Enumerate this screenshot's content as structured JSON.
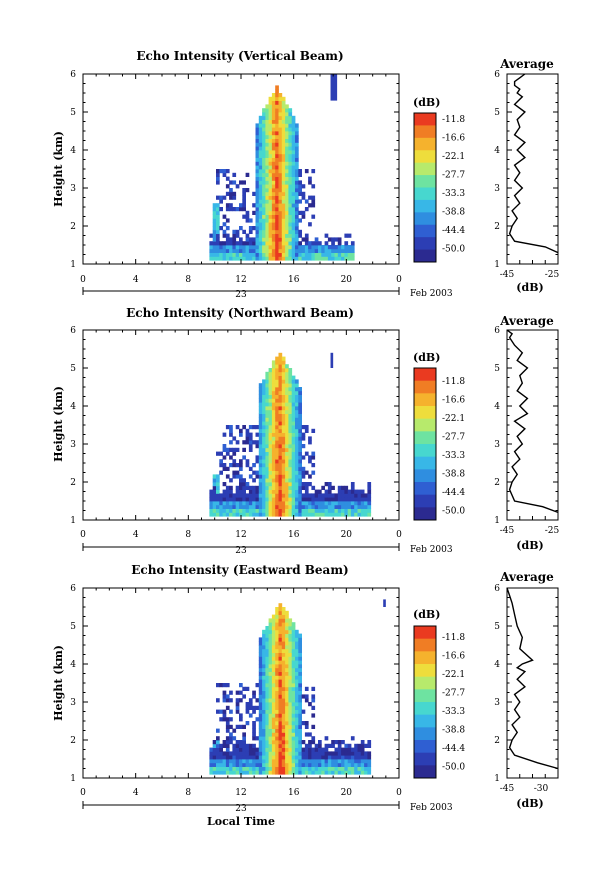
{
  "figure": {
    "time_axis_label": "Local Time",
    "bottom_label": "Feb 2003",
    "day_label": "23",
    "colorbar_unit": "(dB)",
    "colorbar_ticks": [
      "-11.8",
      "-16.6",
      "-22.1",
      "-27.7",
      "-33.3",
      "-38.8",
      "-44.4",
      "-50.0"
    ],
    "colors": [
      "#2b2a90",
      "#2c3eb4",
      "#2f5fd2",
      "#2f8ee0",
      "#38b7e7",
      "#47d7cf",
      "#6ee3a1",
      "#b7ea6c",
      "#eedd3c",
      "#f5b22d",
      "#f07d24",
      "#ea3a20"
    ]
  },
  "chart_data": [
    {
      "type": "heatmap",
      "title": "Echo Intensity (Vertical Beam)",
      "ylabel": "Height (km)",
      "xlim": [
        0,
        24
      ],
      "ylim": [
        1,
        6
      ],
      "xticks": [
        "0",
        "4",
        "8",
        "12",
        "16",
        "20",
        "0"
      ],
      "yticks": [
        "1",
        "2",
        "3",
        "4",
        "5",
        "6"
      ],
      "value_range_db": [
        -50.0,
        -11.8
      ],
      "description_points": [
        {
          "x": 9.5,
          "y_range": [
            1.1,
            1.8
          ],
          "db": -22.1
        },
        {
          "x": 14.6,
          "y_range": [
            1.1,
            5.6
          ],
          "db": -11.8
        },
        {
          "x": 15.5,
          "y_range": [
            1.1,
            5.2
          ],
          "db": -27.7
        },
        {
          "x": 19.5,
          "y_range": [
            1.1,
            2.5
          ],
          "db": -44.4
        }
      ]
    },
    {
      "type": "line",
      "title": "Average",
      "xlabel": "(dB)",
      "xlim": [
        -45,
        -25
      ],
      "ylim": [
        1,
        6
      ],
      "xticks": [
        "-45",
        "-25"
      ],
      "yticks": [
        "1",
        "2",
        "3",
        "4",
        "5",
        "6"
      ],
      "x": [
        -25,
        -30,
        -42,
        -44,
        -43,
        -41,
        -43,
        -40,
        -42,
        -39,
        -42,
        -40,
        -42,
        -38,
        -41,
        -38,
        -42,
        -40,
        -41,
        -38,
        -42,
        -39,
        -41,
        -40,
        -42,
        -42,
        -40,
        -38
      ],
      "y": [
        1.3,
        1.45,
        1.6,
        1.8,
        2.0,
        2.2,
        2.4,
        2.6,
        2.8,
        3.0,
        3.2,
        3.4,
        3.6,
        3.8,
        4.0,
        4.2,
        4.4,
        4.6,
        4.8,
        5.0,
        5.2,
        5.4,
        5.5,
        5.6,
        5.7,
        5.8,
        5.9,
        6.0
      ]
    },
    {
      "type": "heatmap",
      "title": "Echo Intensity (Northward Beam)",
      "ylabel": "Height (km)",
      "xlim": [
        0,
        24
      ],
      "ylim": [
        1,
        6
      ],
      "xticks": [
        "0",
        "4",
        "8",
        "12",
        "16",
        "20",
        "0"
      ],
      "yticks": [
        "1",
        "2",
        "3",
        "4",
        "5",
        "6"
      ],
      "value_range_db": [
        -50.0,
        -11.8
      ],
      "description_points": [
        {
          "x": 14.8,
          "y_range": [
            1.1,
            5.4
          ],
          "db": -11.8
        },
        {
          "x": 16.0,
          "y_range": [
            1.1,
            5.0
          ],
          "db": -27.7
        },
        {
          "x": 20.0,
          "y_range": [
            1.1,
            1.9
          ],
          "db": -44.4
        }
      ]
    },
    {
      "type": "line",
      "title": "Average",
      "xlabel": "(dB)",
      "xlim": [
        -45,
        -25
      ],
      "ylim": [
        1,
        6
      ],
      "xticks": [
        "-45",
        "-25"
      ],
      "yticks": [
        "1",
        "2",
        "3",
        "4",
        "5",
        "6"
      ],
      "x": [
        -25,
        -31,
        -42,
        -44,
        -43,
        -41,
        -43,
        -40,
        -42,
        -39,
        -41,
        -38,
        -42,
        -37,
        -40,
        -37,
        -41,
        -39,
        -40,
        -37,
        -41,
        -39,
        -42,
        -44,
        -43,
        -45
      ],
      "y": [
        1.2,
        1.35,
        1.5,
        1.8,
        2.0,
        2.2,
        2.4,
        2.6,
        2.8,
        3.0,
        3.2,
        3.4,
        3.6,
        3.8,
        4.0,
        4.2,
        4.4,
        4.6,
        4.8,
        5.0,
        5.2,
        5.4,
        5.6,
        5.8,
        5.9,
        6.0
      ]
    },
    {
      "type": "heatmap",
      "title": "Echo Intensity (Eastward Beam)",
      "ylabel": "Height (km)",
      "xlim": [
        0,
        24
      ],
      "ylim": [
        1,
        6
      ],
      "xticks": [
        "0",
        "4",
        "8",
        "12",
        "16",
        "20",
        "0"
      ],
      "yticks": [
        "1",
        "2",
        "3",
        "4",
        "5",
        "6"
      ],
      "value_range_db": [
        -50.0,
        -11.8
      ],
      "description_points": [
        {
          "x": 14.9,
          "y_range": [
            1.1,
            5.6
          ],
          "db": -11.8
        },
        {
          "x": 15.7,
          "y_range": [
            1.1,
            5.0
          ],
          "db": -27.7
        },
        {
          "x": 20.0,
          "y_range": [
            1.1,
            1.9
          ],
          "db": -44.4
        }
      ]
    },
    {
      "type": "line",
      "title": "Average",
      "xlabel": "(dB)",
      "xlim": [
        -45,
        -25
      ],
      "ylim": [
        1,
        6
      ],
      "xticks": [
        "-45",
        "-30"
      ],
      "yticks": [
        "1",
        "2",
        "3",
        "4",
        "5",
        "6"
      ],
      "x": [
        -25,
        -33,
        -42,
        -44,
        -43,
        -41,
        -43,
        -40,
        -42,
        -40,
        -42,
        -38,
        -41,
        -38,
        -41,
        -39,
        -35,
        -40,
        -39,
        -41,
        -42,
        -43,
        -44,
        -45
      ],
      "y": [
        1.25,
        1.4,
        1.6,
        1.8,
        2.0,
        2.2,
        2.4,
        2.6,
        2.8,
        3.0,
        3.2,
        3.4,
        3.6,
        3.8,
        3.9,
        4.0,
        4.1,
        4.4,
        4.7,
        5.0,
        5.3,
        5.6,
        5.8,
        6.0
      ]
    }
  ]
}
